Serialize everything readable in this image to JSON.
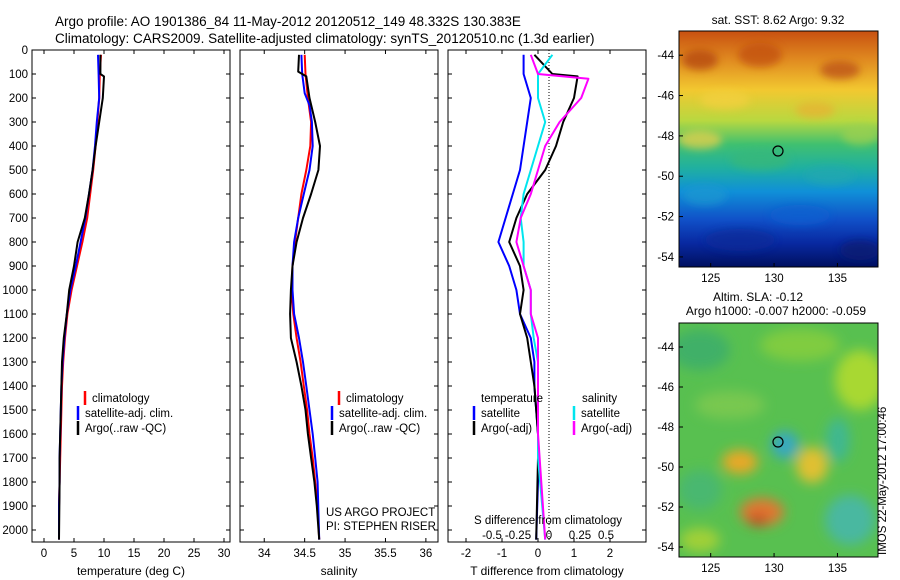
{
  "header": {
    "line1": "Argo profile: AO 1901386_84 11-May-2012 20120512_149 48.332S 130.383E",
    "line2": "Climatology: CARS2009. Satellite-adjusted climatology: synTS_20120510.nc (1.3d earlier)"
  },
  "stamp": "IMOS 22-May-2012 17:00:46",
  "colors": {
    "climatology": "#ff0000",
    "satellite": "#0000ff",
    "argo": "#000000",
    "salinity_sat": "#00e5ee",
    "salinity_argo": "#ff00ff"
  },
  "depth_ticks": [
    0,
    100,
    200,
    300,
    400,
    500,
    600,
    700,
    800,
    900,
    1000,
    1100,
    1200,
    1300,
    1400,
    1500,
    1600,
    1700,
    1800,
    1900,
    2000
  ],
  "chart_data": [
    {
      "type": "line",
      "id": "temperature",
      "xlabel": "temperature (deg C)",
      "xlim": [
        -2,
        31
      ],
      "ylim": [
        0,
        2050
      ],
      "xticks": [
        0,
        5,
        10,
        15,
        20,
        25,
        30
      ],
      "legend": [
        "climatology",
        "satellite-adj. clim.",
        "Argo(..raw -QC)"
      ],
      "series": [
        {
          "name": "climatology",
          "color": "#ff0000",
          "x": [
            9.5,
            9.3,
            9.2,
            8.9,
            8.6,
            8.2,
            7.7,
            7.2,
            6.4,
            5.5,
            4.6,
            3.9,
            3.5,
            3.2,
            3.0,
            2.9,
            2.8,
            2.7,
            2.6,
            2.5,
            2.5
          ],
          "y": [
            20,
            100,
            200,
            300,
            400,
            500,
            600,
            700,
            800,
            900,
            1000,
            1100,
            1200,
            1300,
            1400,
            1500,
            1600,
            1700,
            1800,
            1900,
            2040
          ]
        },
        {
          "name": "satellite-adj. clim.",
          "color": "#0000ff",
          "x": [
            9.0,
            9.1,
            9.2,
            8.8,
            8.5,
            8.1,
            7.5,
            6.9,
            6.1,
            5.3,
            4.4,
            3.8,
            3.4,
            3.1,
            2.9,
            2.8,
            2.7,
            2.6,
            2.6,
            2.5,
            2.5
          ],
          "y": [
            20,
            100,
            200,
            300,
            400,
            500,
            600,
            700,
            800,
            900,
            1000,
            1100,
            1200,
            1300,
            1400,
            1500,
            1600,
            1700,
            1800,
            1900,
            2040
          ]
        },
        {
          "name": "Argo(..raw -QC)",
          "color": "#000000",
          "x": [
            9.4,
            9.4,
            10.0,
            9.8,
            9.2,
            8.6,
            8.1,
            7.5,
            6.8,
            5.6,
            5.0,
            4.2,
            3.8,
            3.3,
            3.0,
            2.9,
            2.8,
            2.7,
            2.6,
            2.6,
            2.5
          ],
          "y": [
            20,
            100,
            110,
            200,
            300,
            400,
            500,
            600,
            700,
            800,
            900,
            1000,
            1100,
            1200,
            1300,
            1400,
            1500,
            1600,
            1700,
            1800,
            2040
          ]
        }
      ]
    },
    {
      "type": "line",
      "id": "salinity",
      "xlabel": "salinity",
      "xlim": [
        33.7,
        36.15
      ],
      "ylim": [
        0,
        2050
      ],
      "xticks": [
        34,
        34.5,
        35,
        35.5,
        36
      ],
      "legend": [
        "climatology",
        "satellite-adj. clim.",
        "Argo(..raw -QC)"
      ],
      "annotation": [
        "US ARGO PROJECT",
        "PI: STEPHEN RISER"
      ],
      "series": [
        {
          "name": "climatology",
          "color": "#ff0000",
          "x": [
            34.5,
            34.51,
            34.54,
            34.58,
            34.57,
            34.52,
            34.46,
            34.42,
            34.38,
            34.35,
            34.34,
            34.36,
            34.4,
            34.45,
            34.49,
            34.53,
            34.56,
            34.6,
            34.63,
            34.66,
            34.68
          ],
          "y": [
            20,
            100,
            200,
            300,
            400,
            500,
            600,
            700,
            800,
            900,
            1000,
            1100,
            1200,
            1300,
            1400,
            1500,
            1600,
            1700,
            1800,
            1900,
            2040
          ]
        },
        {
          "name": "satellite-adj. clim.",
          "color": "#0000ff",
          "x": [
            34.46,
            34.47,
            34.5,
            34.56,
            34.59,
            34.6,
            34.56,
            34.49,
            34.42,
            34.37,
            34.35,
            34.35,
            34.37,
            34.43,
            34.48,
            34.52,
            34.56,
            34.6,
            34.63,
            34.66,
            34.68
          ],
          "y": [
            20,
            100,
            180,
            230,
            300,
            400,
            500,
            600,
            700,
            800,
            900,
            1000,
            1100,
            1200,
            1300,
            1400,
            1500,
            1600,
            1700,
            1800,
            2040
          ]
        },
        {
          "name": "Argo(..raw -QC)",
          "color": "#000000",
          "x": [
            34.43,
            34.42,
            34.52,
            34.56,
            34.63,
            34.69,
            34.67,
            34.58,
            34.48,
            34.4,
            34.35,
            34.33,
            34.32,
            34.33,
            34.4,
            34.46,
            34.51,
            34.54,
            34.58,
            34.62,
            34.65,
            34.68
          ],
          "y": [
            20,
            90,
            110,
            200,
            300,
            400,
            500,
            600,
            700,
            800,
            900,
            1000,
            1100,
            1200,
            1300,
            1400,
            1500,
            1600,
            1700,
            1800,
            1900,
            2040
          ]
        }
      ]
    },
    {
      "type": "line",
      "id": "differences",
      "xlabel": "T difference from climatology",
      "xlabel_top": "S difference from climatology",
      "xlim": [
        -2.5,
        3.0
      ],
      "ylim": [
        0,
        2050
      ],
      "xticks_bottom": [
        -2,
        -1,
        0,
        1,
        2
      ],
      "xticks_top": [
        "-0.5",
        "-0.25",
        "0",
        "0.25",
        "0.5"
      ],
      "legend_temperature": [
        "temperature",
        "satellite",
        "Argo(-adj)"
      ],
      "legend_salinity": [
        "salinity",
        "satellite",
        "Argo(-adj)"
      ],
      "series": [
        {
          "name": "temperature satellite",
          "color": "#0000ff",
          "x": [
            -0.4,
            -0.4,
            -0.2,
            -0.3,
            -0.4,
            -0.5,
            -0.7,
            -0.9,
            -1.1,
            -0.8,
            -0.6,
            -0.5,
            -0.2,
            -0.1,
            -0.1,
            -0.05,
            0.0,
            0.0,
            0.0,
            -0.05
          ],
          "y": [
            20,
            100,
            200,
            300,
            400,
            500,
            600,
            700,
            800,
            900,
            1000,
            1100,
            1200,
            1300,
            1400,
            1500,
            1600,
            1700,
            1800,
            2040
          ]
        },
        {
          "name": "temperature Argo(-adj)",
          "color": "#000000",
          "x": [
            -0.1,
            0.4,
            1.1,
            1.0,
            0.7,
            0.5,
            0.2,
            -0.3,
            -0.6,
            -0.8,
            -0.5,
            -0.4,
            -0.5,
            -0.3,
            -0.2,
            -0.1,
            -0.05,
            0.0,
            0.0,
            -0.05
          ],
          "y": [
            20,
            100,
            110,
            200,
            300,
            400,
            500,
            600,
            700,
            800,
            900,
            1000,
            1100,
            1200,
            1300,
            1400,
            1500,
            1600,
            1700,
            2040
          ]
        },
        {
          "name": "salinity satellite",
          "color": "#00e5ee",
          "x": [
            0.1,
            0.0,
            0.0,
            0.05,
            0.0,
            -0.05,
            -0.1,
            -0.12,
            -0.1,
            -0.1,
            -0.05,
            -0.05,
            -0.03,
            0.0,
            0.0,
            0.0,
            0.0,
            0.0,
            0.05
          ],
          "y": [
            20,
            100,
            200,
            300,
            400,
            500,
            600,
            700,
            800,
            900,
            1000,
            1100,
            1200,
            1300,
            1400,
            1500,
            1600,
            1700,
            2040
          ]
        },
        {
          "name": "salinity Argo(-adj)",
          "color": "#ff00ff",
          "x": [
            -0.05,
            0.0,
            0.35,
            0.3,
            0.15,
            0.05,
            0.0,
            -0.05,
            -0.12,
            -0.15,
            -0.1,
            -0.05,
            -0.05,
            0.0,
            0.0,
            0.0,
            0.0,
            0.0,
            0.05
          ],
          "y": [
            20,
            100,
            120,
            200,
            300,
            400,
            500,
            600,
            700,
            800,
            900,
            1000,
            1100,
            1200,
            1300,
            1400,
            1500,
            1600,
            2040
          ]
        }
      ]
    },
    {
      "type": "heatmap",
      "id": "sst_map",
      "title": "sat. SST: 8.62 Argo: 9.32",
      "xlim": [
        122.5,
        138.2
      ],
      "ylim": [
        -54.5,
        -42.8
      ],
      "xticks": [
        125,
        130,
        135
      ],
      "yticks": [
        -44,
        -46,
        -48,
        -50,
        -52,
        -54
      ],
      "marker": {
        "lon": 130.383,
        "lat": -48.332
      }
    },
    {
      "type": "heatmap",
      "id": "sla_map",
      "title": "Altim. SLA: -0.12",
      "subtitle": "Argo h1000: -0.007 h2000: -0.059",
      "xlim": [
        122.5,
        138.2
      ],
      "ylim": [
        -54.5,
        -42.8
      ],
      "xticks": [
        125,
        130,
        135
      ],
      "yticks": [
        -44,
        -46,
        -48,
        -50,
        -52,
        -54
      ],
      "marker": {
        "lon": 130.383,
        "lat": -48.332
      }
    }
  ]
}
